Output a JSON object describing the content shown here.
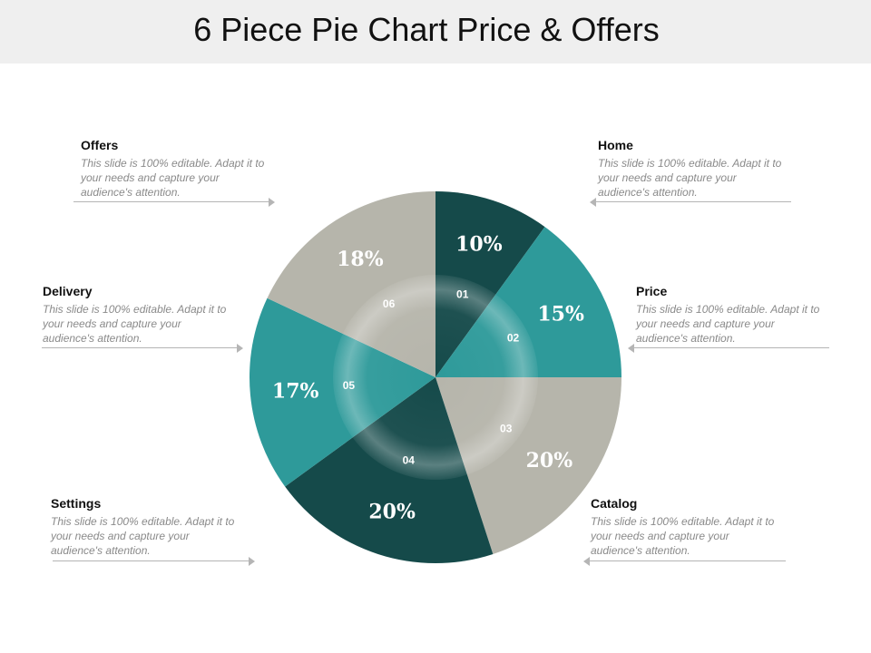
{
  "title": "6 Piece Pie Chart Price & Offers",
  "colors": {
    "dark": "#154a4a",
    "teal": "#2e9a9a",
    "gray": "#b6b5ab"
  },
  "chart_data": {
    "type": "pie",
    "title": "6 Piece Pie Chart Price & Offers",
    "slices": [
      {
        "label": "Home",
        "number": "01",
        "value": 10,
        "value_label": "10%",
        "color": "#154a4a"
      },
      {
        "label": "Price",
        "number": "02",
        "value": 15,
        "value_label": "15%",
        "color": "#2e9a9a"
      },
      {
        "label": "Catalog",
        "number": "03",
        "value": 20,
        "value_label": "20%",
        "color": "#b6b5ab"
      },
      {
        "label": "Settings",
        "number": "04",
        "value": 20,
        "value_label": "20%",
        "color": "#154a4a"
      },
      {
        "label": "Delivery",
        "number": "05",
        "value": 17,
        "value_label": "17%",
        "color": "#2e9a9a"
      },
      {
        "label": "Offers",
        "number": "06",
        "value": 18,
        "value_label": "18%",
        "color": "#b6b5ab"
      }
    ]
  },
  "callouts": {
    "offers": {
      "heading": "Offers",
      "text": "This slide is 100% editable. Adapt it to your needs and capture your audience's attention."
    },
    "home": {
      "heading": "Home",
      "text": "This slide is 100% editable. Adapt it to your needs and capture your audience's attention."
    },
    "delivery": {
      "heading": "Delivery",
      "text": "This slide is 100% editable. Adapt it to your needs and capture your audience's attention."
    },
    "price": {
      "heading": "Price",
      "text": "This slide is 100% editable. Adapt it to your needs and capture your audience's attention."
    },
    "settings": {
      "heading": "Settings",
      "text": "This slide is 100% editable. Adapt it to your needs and capture your audience's attention."
    },
    "catalog": {
      "heading": "Catalog",
      "text": "This slide is 100% editable. Adapt it to your needs and capture your audience's attention."
    }
  }
}
